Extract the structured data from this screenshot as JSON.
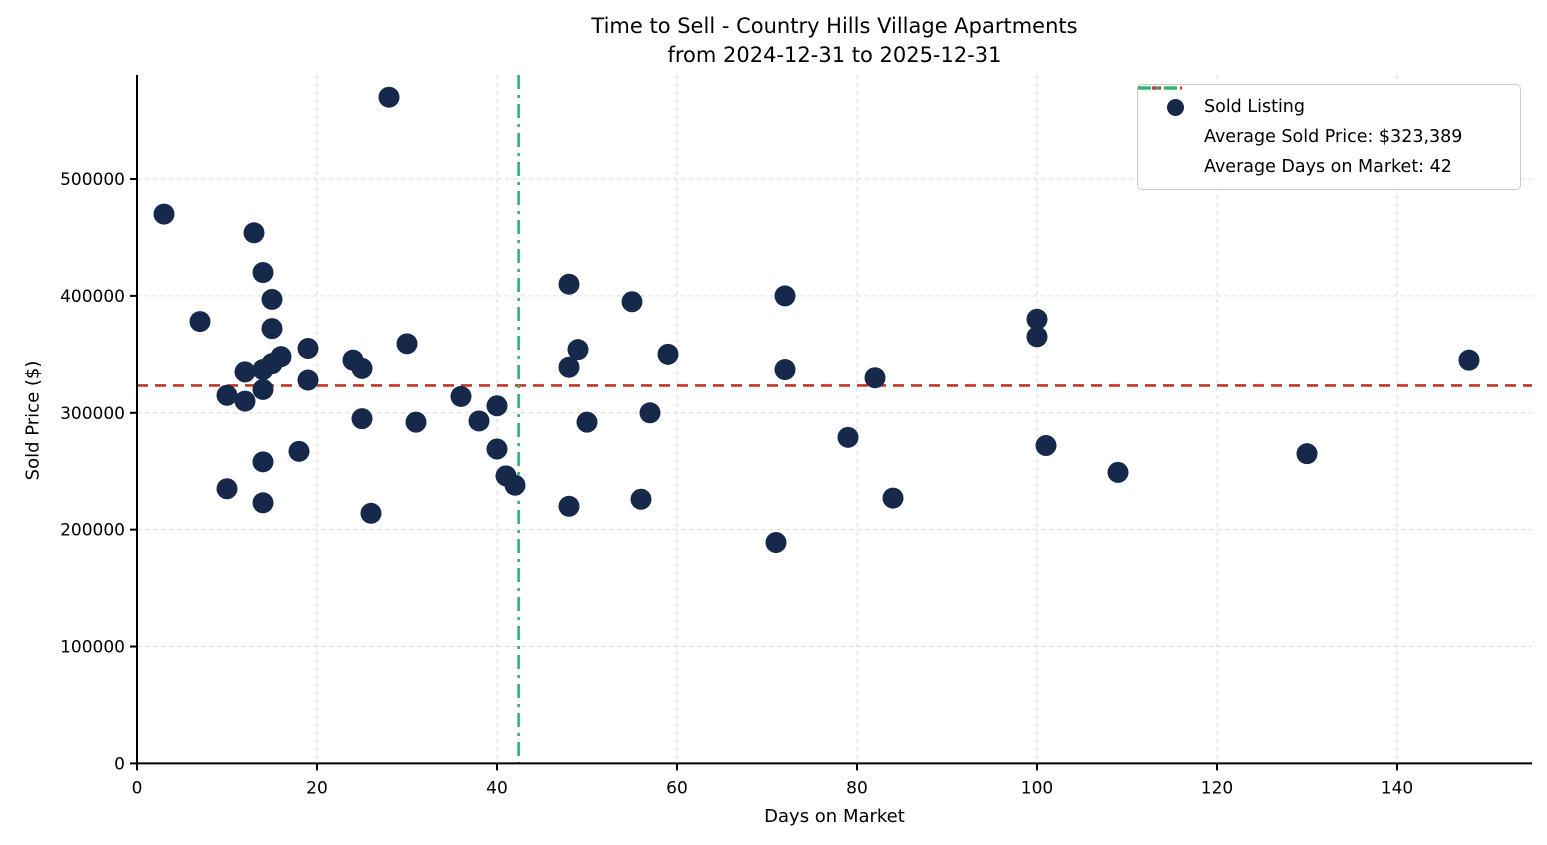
{
  "title": {
    "line1": "Time to Sell - Country Hills Village Apartments",
    "line2": "from 2024-12-31 to 2025-12-31"
  },
  "legend": {
    "sold_listing_label": "Sold Listing",
    "avg_price_label": "Average Sold Price: $323,389",
    "avg_days_label": "Average Days on Market: 42"
  },
  "colors": {
    "dot": "#16294a",
    "avg_price_line": "#c0392b",
    "avg_days_line": "#2eb370",
    "grid": "#d9d9d9",
    "axis": "#000000"
  },
  "chart_data": {
    "type": "scatter",
    "title": "Time to Sell - Country Hills Village Apartments",
    "subtitle": "from 2024-12-31 to 2025-12-31",
    "xlabel": "Days on Market",
    "ylabel": "Sold Price ($)",
    "xlim": [
      0,
      155
    ],
    "ylim": [
      0,
      589000
    ],
    "x_ticks": [
      0,
      20,
      40,
      60,
      80,
      100,
      120,
      140
    ],
    "y_ticks": [
      0,
      100000,
      200000,
      300000,
      400000,
      500000
    ],
    "grid": true,
    "legend_position": "upper right",
    "series": [
      {
        "name": "Sold Listing",
        "points": [
          [
            3,
            470000
          ],
          [
            7,
            378000
          ],
          [
            10,
            315000
          ],
          [
            10,
            235000
          ],
          [
            12,
            335000
          ],
          [
            12,
            310000
          ],
          [
            13,
            454000
          ],
          [
            14,
            420000
          ],
          [
            14,
            337000
          ],
          [
            14,
            320000
          ],
          [
            14,
            258000
          ],
          [
            14,
            223000
          ],
          [
            15,
            397000
          ],
          [
            15,
            372000
          ],
          [
            15,
            342000
          ],
          [
            16,
            348000
          ],
          [
            18,
            267000
          ],
          [
            19,
            355000
          ],
          [
            19,
            328000
          ],
          [
            24,
            345000
          ],
          [
            25,
            338000
          ],
          [
            25,
            295000
          ],
          [
            26,
            214000
          ],
          [
            28,
            570000
          ],
          [
            30,
            359000
          ],
          [
            31,
            292000
          ],
          [
            36,
            314000
          ],
          [
            38,
            293000
          ],
          [
            40,
            306000
          ],
          [
            40,
            269000
          ],
          [
            41,
            246000
          ],
          [
            42,
            238000
          ],
          [
            48,
            410000
          ],
          [
            48,
            339000
          ],
          [
            48,
            220000
          ],
          [
            49,
            354000
          ],
          [
            50,
            292000
          ],
          [
            55,
            395000
          ],
          [
            56,
            226000
          ],
          [
            57,
            300000
          ],
          [
            59,
            350000
          ],
          [
            71,
            189000
          ],
          [
            72,
            400000
          ],
          [
            72,
            337000
          ],
          [
            79,
            279000
          ],
          [
            82,
            330000
          ],
          [
            84,
            227000
          ],
          [
            100,
            380000
          ],
          [
            100,
            365000
          ],
          [
            101,
            272000
          ],
          [
            109,
            249000
          ],
          [
            130,
            265000
          ],
          [
            148,
            345000
          ]
        ]
      }
    ],
    "annotations": {
      "average_sold_price": 323389,
      "average_days_on_market": 42,
      "avg_days_line_x": 42.4
    }
  }
}
